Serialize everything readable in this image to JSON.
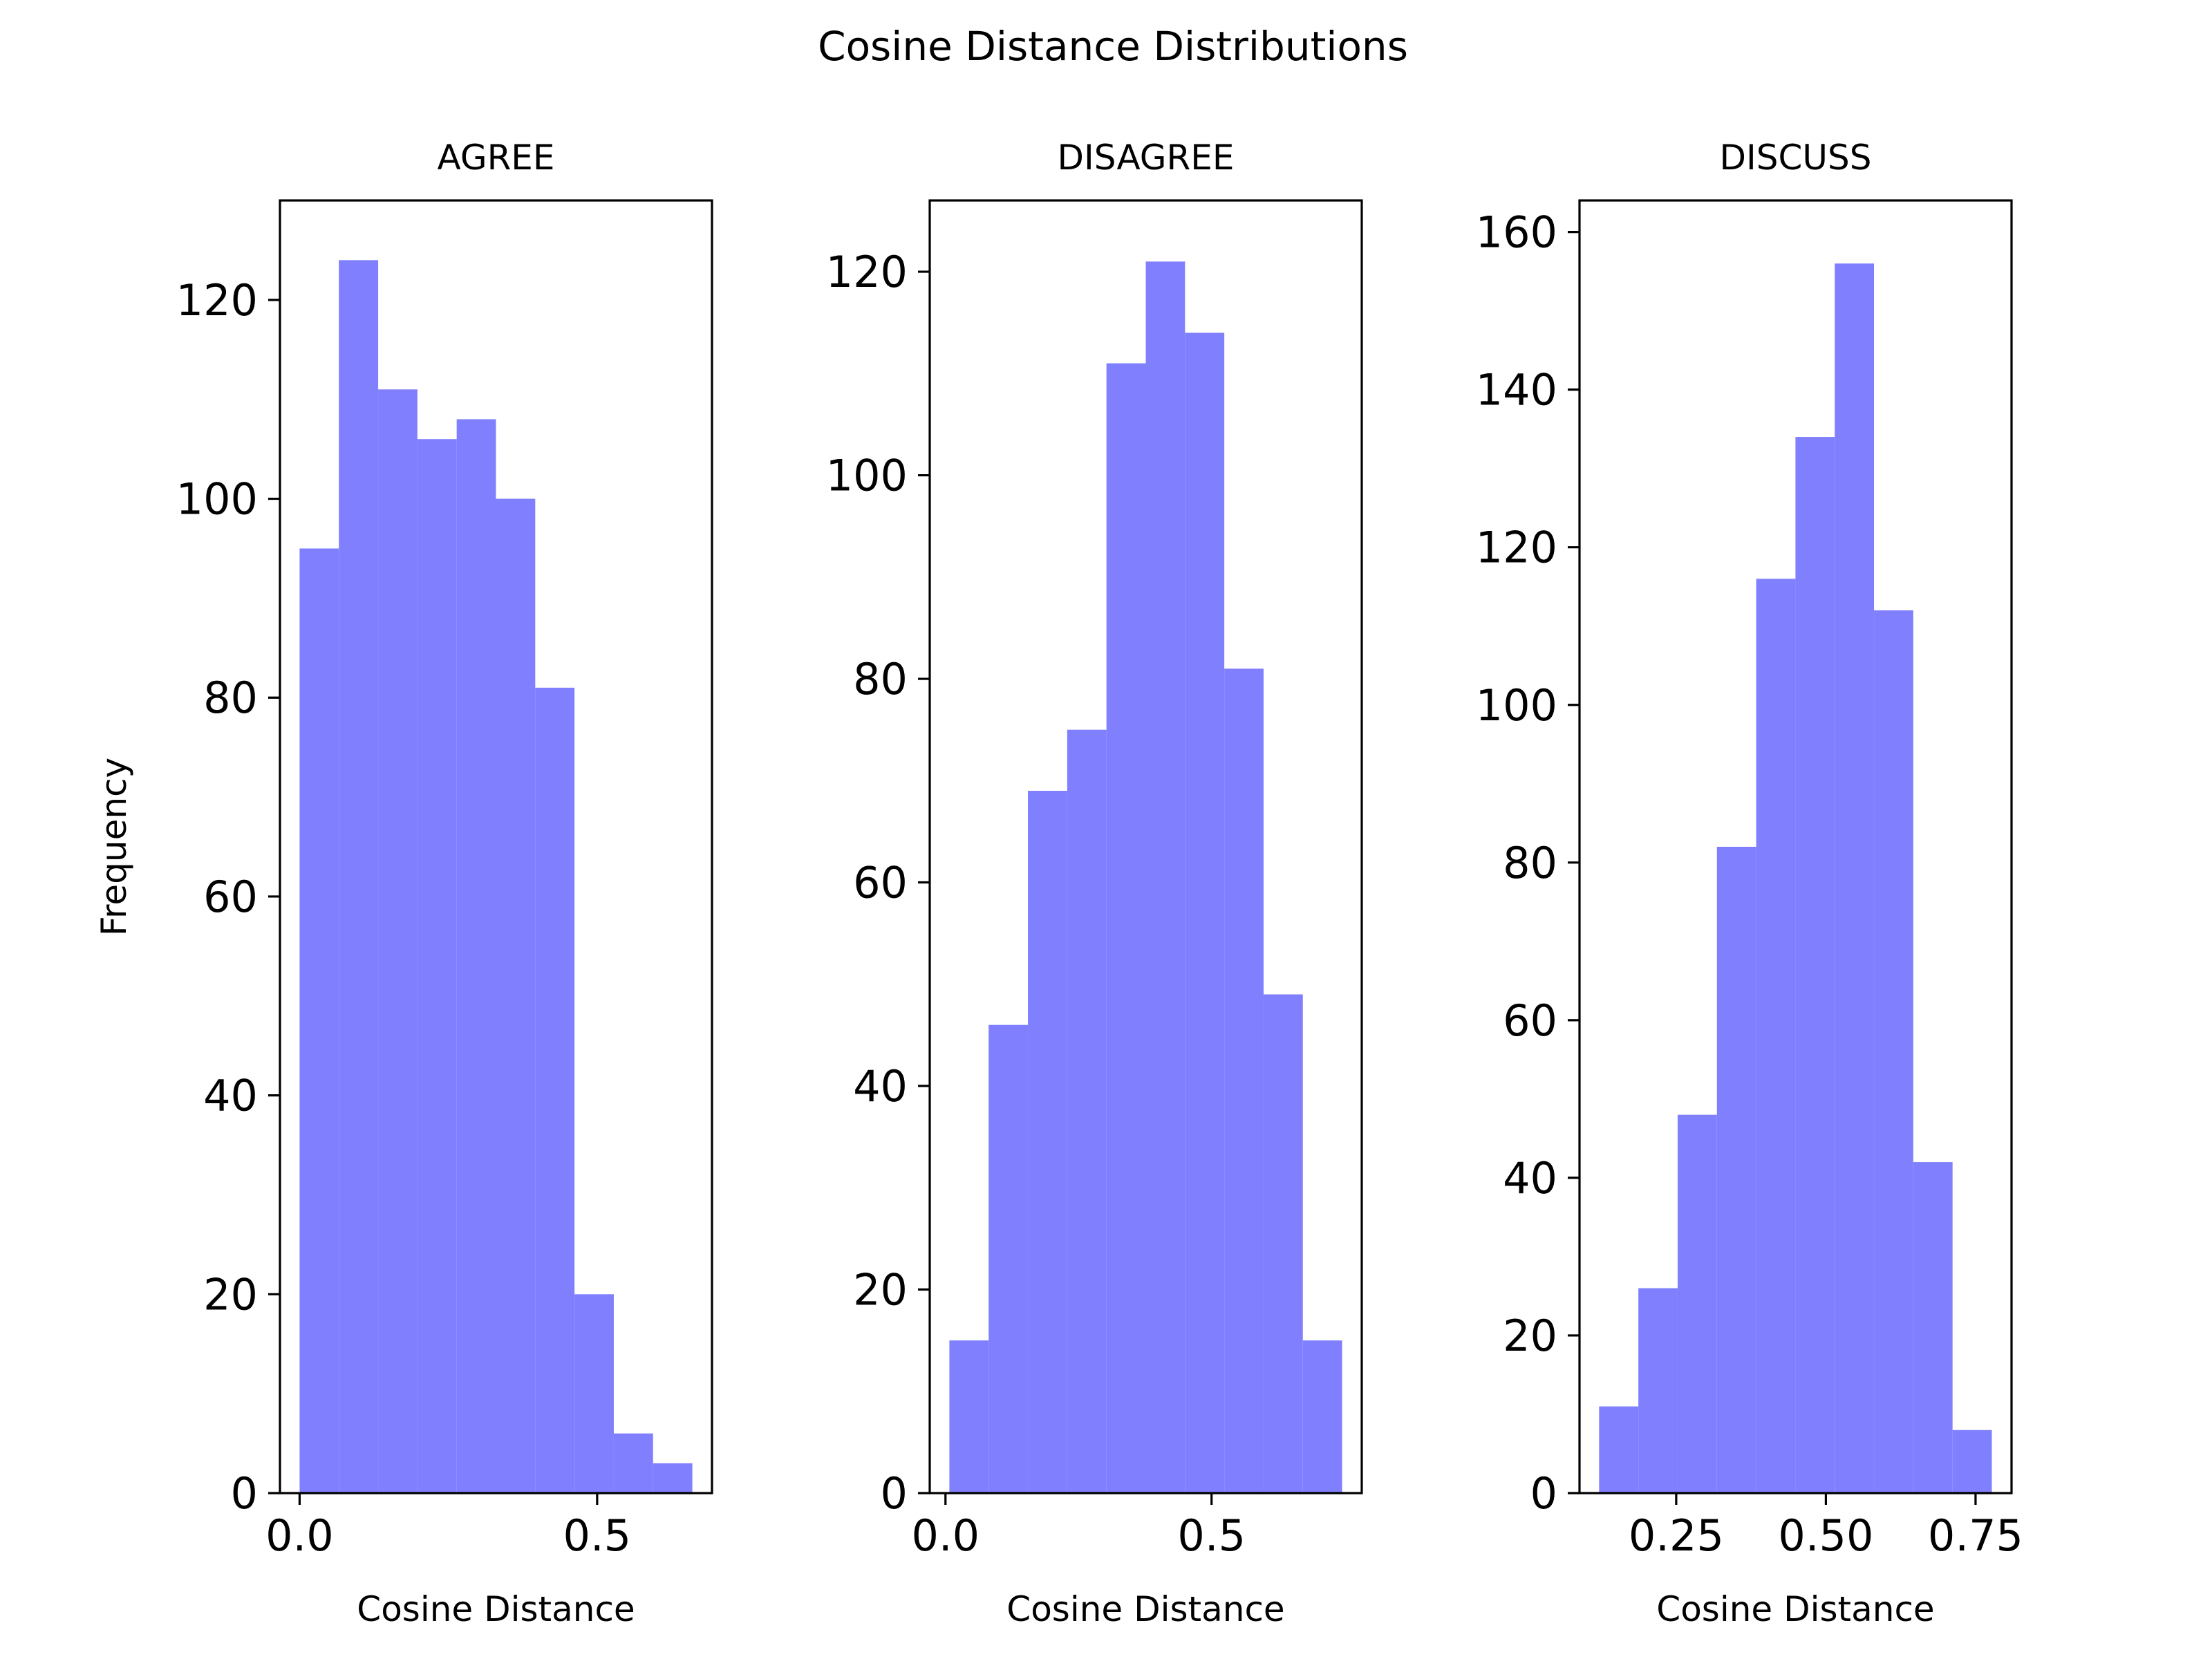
{
  "figure": {
    "title": "Cosine Distance Distributions",
    "ylabel": "Frequency"
  },
  "chart_data": [
    {
      "type": "bar",
      "title": "AGREE",
      "xlabel": "Cosine Distance",
      "ylabel": "Frequency",
      "color": "#8080ff",
      "bins": [
        {
          "x0": 0.0,
          "x1": 0.066,
          "count": 95
        },
        {
          "x0": 0.066,
          "x1": 0.132,
          "count": 124
        },
        {
          "x0": 0.132,
          "x1": 0.198,
          "count": 111
        },
        {
          "x0": 0.198,
          "x1": 0.264,
          "count": 106
        },
        {
          "x0": 0.264,
          "x1": 0.33,
          "count": 108
        },
        {
          "x0": 0.33,
          "x1": 0.396,
          "count": 100
        },
        {
          "x0": 0.396,
          "x1": 0.462,
          "count": 81
        },
        {
          "x0": 0.462,
          "x1": 0.528,
          "count": 20
        },
        {
          "x0": 0.528,
          "x1": 0.594,
          "count": 6
        },
        {
          "x0": 0.594,
          "x1": 0.66,
          "count": 3
        }
      ],
      "xlim": [
        -0.033,
        0.693
      ],
      "ylim": [
        0,
        130
      ],
      "xticks": [
        {
          "v": 0.0,
          "label": "0.0"
        },
        {
          "v": 0.5,
          "label": "0.5"
        }
      ],
      "yticks": [
        {
          "v": 0,
          "label": "0"
        },
        {
          "v": 20,
          "label": "20"
        },
        {
          "v": 40,
          "label": "40"
        },
        {
          "v": 60,
          "label": "60"
        },
        {
          "v": 80,
          "label": "80"
        },
        {
          "v": 100,
          "label": "100"
        },
        {
          "v": 120,
          "label": "120"
        }
      ]
    },
    {
      "type": "bar",
      "title": "DISAGREE",
      "xlabel": "Cosine Distance",
      "color": "#8080ff",
      "bins": [
        {
          "x0": 0.0073,
          "x1": 0.0811,
          "count": 15
        },
        {
          "x0": 0.0811,
          "x1": 0.1549,
          "count": 46
        },
        {
          "x0": 0.1549,
          "x1": 0.2287,
          "count": 69
        },
        {
          "x0": 0.2287,
          "x1": 0.3025,
          "count": 75
        },
        {
          "x0": 0.3025,
          "x1": 0.3763,
          "count": 111
        },
        {
          "x0": 0.3763,
          "x1": 0.4501,
          "count": 121
        },
        {
          "x0": 0.4501,
          "x1": 0.5239,
          "count": 114
        },
        {
          "x0": 0.5239,
          "x1": 0.5977,
          "count": 81
        },
        {
          "x0": 0.5977,
          "x1": 0.6715,
          "count": 49
        },
        {
          "x0": 0.6715,
          "x1": 0.7453,
          "count": 15
        }
      ],
      "xlim": [
        -0.0296,
        0.7822
      ],
      "ylim": [
        0,
        127
      ],
      "xticks": [
        {
          "v": 0.0,
          "label": "0.0"
        },
        {
          "v": 0.5,
          "label": "0.5"
        }
      ],
      "yticks": [
        {
          "v": 0,
          "label": "0"
        },
        {
          "v": 20,
          "label": "20"
        },
        {
          "v": 40,
          "label": "40"
        },
        {
          "v": 60,
          "label": "60"
        },
        {
          "v": 80,
          "label": "80"
        },
        {
          "v": 100,
          "label": "100"
        },
        {
          "v": 120,
          "label": "120"
        }
      ]
    },
    {
      "type": "bar",
      "title": "DISCUSS",
      "xlabel": "Cosine Distance",
      "color": "#8080ff",
      "bins": [
        {
          "x0": 0.1212,
          "x1": 0.1868,
          "count": 11
        },
        {
          "x0": 0.1868,
          "x1": 0.2524,
          "count": 26
        },
        {
          "x0": 0.2524,
          "x1": 0.318,
          "count": 48
        },
        {
          "x0": 0.318,
          "x1": 0.3836,
          "count": 82
        },
        {
          "x0": 0.3836,
          "x1": 0.4492,
          "count": 116
        },
        {
          "x0": 0.4492,
          "x1": 0.5148,
          "count": 134
        },
        {
          "x0": 0.5148,
          "x1": 0.5804,
          "count": 156
        },
        {
          "x0": 0.5804,
          "x1": 0.646,
          "count": 112
        },
        {
          "x0": 0.646,
          "x1": 0.7116,
          "count": 42
        },
        {
          "x0": 0.7116,
          "x1": 0.7772,
          "count": 8
        }
      ],
      "xlim": [
        0.0885,
        0.8101
      ],
      "ylim": [
        0,
        164
      ],
      "xticks": [
        {
          "v": 0.25,
          "label": "0.25"
        },
        {
          "v": 0.5,
          "label": "0.50"
        },
        {
          "v": 0.75,
          "label": "0.75"
        }
      ],
      "yticks": [
        {
          "v": 0,
          "label": "0"
        },
        {
          "v": 20,
          "label": "20"
        },
        {
          "v": 40,
          "label": "40"
        },
        {
          "v": 60,
          "label": "60"
        },
        {
          "v": 80,
          "label": "80"
        },
        {
          "v": 100,
          "label": "100"
        },
        {
          "v": 120,
          "label": "120"
        },
        {
          "v": 140,
          "label": "140"
        },
        {
          "v": 160,
          "label": "160"
        }
      ]
    }
  ]
}
